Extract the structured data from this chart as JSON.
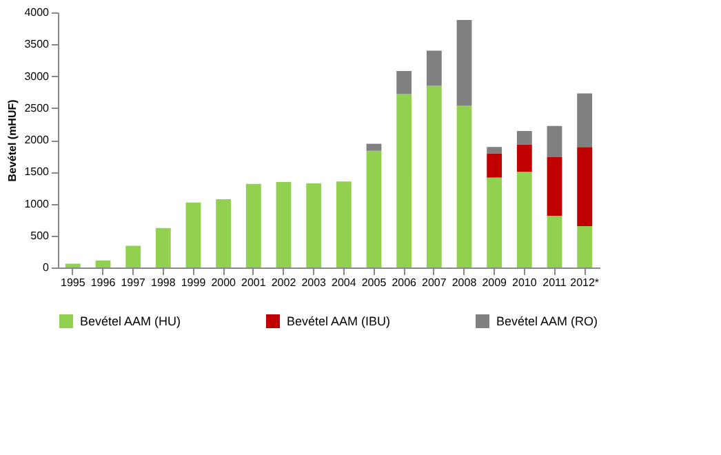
{
  "chart_data": {
    "type": "bar",
    "stacked": true,
    "ylabel": "Bevétel (mHUF)",
    "ylim": [
      0,
      4000
    ],
    "yticks": [
      0,
      500,
      1000,
      1500,
      2000,
      2500,
      3000,
      3500,
      4000
    ],
    "grid": false,
    "legend": "bottom",
    "categories": [
      "1995",
      "1996",
      "1997",
      "1998",
      "1999",
      "2000",
      "2001",
      "2002",
      "2003",
      "2004",
      "2005",
      "2006",
      "2007",
      "2008",
      "2009",
      "2010",
      "2011",
      "2012*"
    ],
    "series": [
      {
        "name": "Bevétel AAM (HU)",
        "color": "#92d050",
        "values": [
          60,
          110,
          340,
          620,
          1020,
          1070,
          1310,
          1340,
          1320,
          1350,
          1830,
          2720,
          2850,
          2540,
          1410,
          1500,
          810,
          650
        ]
      },
      {
        "name": "Bevétel AAM (IBU)",
        "color": "#c00000",
        "values": [
          null,
          null,
          null,
          null,
          null,
          null,
          null,
          null,
          null,
          null,
          null,
          null,
          null,
          null,
          380,
          430,
          920,
          1240
        ]
      },
      {
        "name": "Bevétel AAM (RO)",
        "color": "#808080",
        "values": [
          null,
          null,
          null,
          null,
          null,
          null,
          null,
          null,
          null,
          null,
          110,
          360,
          550,
          1340,
          100,
          210,
          490,
          840
        ]
      }
    ]
  }
}
